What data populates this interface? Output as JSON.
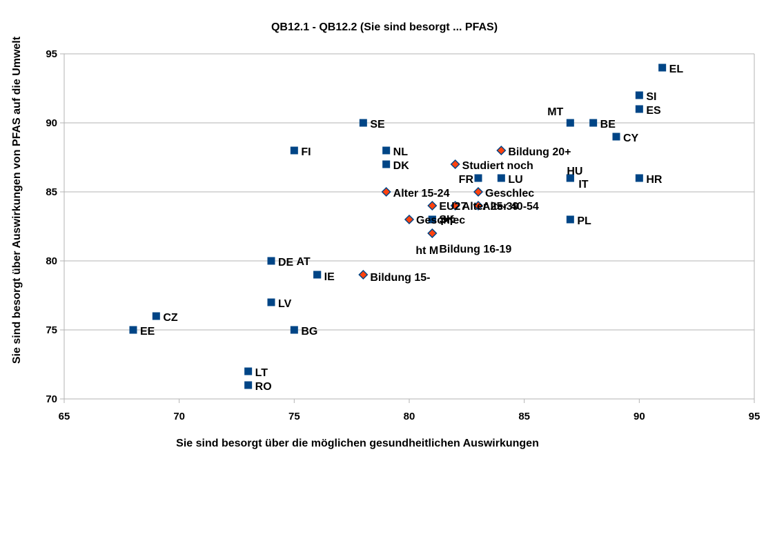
{
  "chart_data": {
    "type": "scatter",
    "title": "QB12.1 - QB12.2 (Sie sind besorgt ... PFAS)",
    "xlabel": "Sie sind besorgt über die möglichen gesundheitlichen Auswirkungen",
    "ylabel": "Sie sind besorgt über Auswirkungen von PFAS auf die Umwelt",
    "xlim": [
      65,
      95
    ],
    "ylim": [
      70,
      95
    ],
    "xticks": [
      "65",
      "70",
      "75",
      "80",
      "85",
      "90",
      "95"
    ],
    "yticks": [
      "70",
      "75",
      "80",
      "85",
      "90",
      "95"
    ],
    "grid": "horizontal",
    "colors": {
      "country": "#004586",
      "group": "#ff420e",
      "group_edge": "#004586"
    },
    "series": [
      {
        "kind": "country",
        "points": [
          {
            "label": "EL",
            "x": 91,
            "y": 94
          },
          {
            "label": "SI",
            "x": 90,
            "y": 92
          },
          {
            "label": "ES",
            "x": 90,
            "y": 91
          },
          {
            "label": "MT",
            "x": 87,
            "y": 90
          },
          {
            "label": "BE",
            "x": 88,
            "y": 90
          },
          {
            "label": "CY",
            "x": 89,
            "y": 89
          },
          {
            "label": "SE",
            "x": 78,
            "y": 90
          },
          {
            "label": "FI",
            "x": 75,
            "y": 88
          },
          {
            "label": "NL",
            "x": 79,
            "y": 88
          },
          {
            "label": "DK",
            "x": 79,
            "y": 87
          },
          {
            "label": "HU",
            "x": 87,
            "y": 86
          },
          {
            "label": "IT",
            "x": 87,
            "y": 86
          },
          {
            "label": "HR",
            "x": 90,
            "y": 86
          },
          {
            "label": "FR",
            "x": 83,
            "y": 86
          },
          {
            "label": "LU",
            "x": 84,
            "y": 86
          },
          {
            "label": "PL",
            "x": 87,
            "y": 83
          },
          {
            "label": "PT",
            "x": 81,
            "y": 83
          },
          {
            "label": "SK",
            "x": 81,
            "y": 83
          },
          {
            "label": "DE",
            "x": 74,
            "y": 80
          },
          {
            "label": "AT",
            "x": 76,
            "y": 79
          },
          {
            "label": "IE",
            "x": 76,
            "y": 79
          },
          {
            "label": "LV",
            "x": 74,
            "y": 77
          },
          {
            "label": "CZ",
            "x": 69,
            "y": 76
          },
          {
            "label": "EE",
            "x": 68,
            "y": 75
          },
          {
            "label": "BG",
            "x": 75,
            "y": 75
          },
          {
            "label": "LT",
            "x": 73,
            "y": 72
          },
          {
            "label": "RO",
            "x": 73,
            "y": 71
          }
        ]
      },
      {
        "kind": "group",
        "points": [
          {
            "label": "Bildung 20+",
            "x": 84,
            "y": 88
          },
          {
            "label": "Studiert noch",
            "x": 82,
            "y": 87
          },
          {
            "label": "Alter 15-24",
            "x": 79,
            "y": 85
          },
          {
            "label": "Geschlec",
            "x": 83,
            "y": 85
          },
          {
            "label": "EU27",
            "x": 81,
            "y": 84
          },
          {
            "label": "Alter 25-39",
            "x": 82,
            "y": 84
          },
          {
            "label": "Alter 40-54",
            "x": 83,
            "y": 84
          },
          {
            "label": "Geschlec",
            "x": 80,
            "y": 83
          },
          {
            "label": "ht M",
            "x": 81,
            "y": 82
          },
          {
            "label": "Bildung 16-19",
            "x": 81,
            "y": 82
          },
          {
            "label": "Bildung 15-",
            "x": 78,
            "y": 79
          }
        ]
      }
    ]
  }
}
